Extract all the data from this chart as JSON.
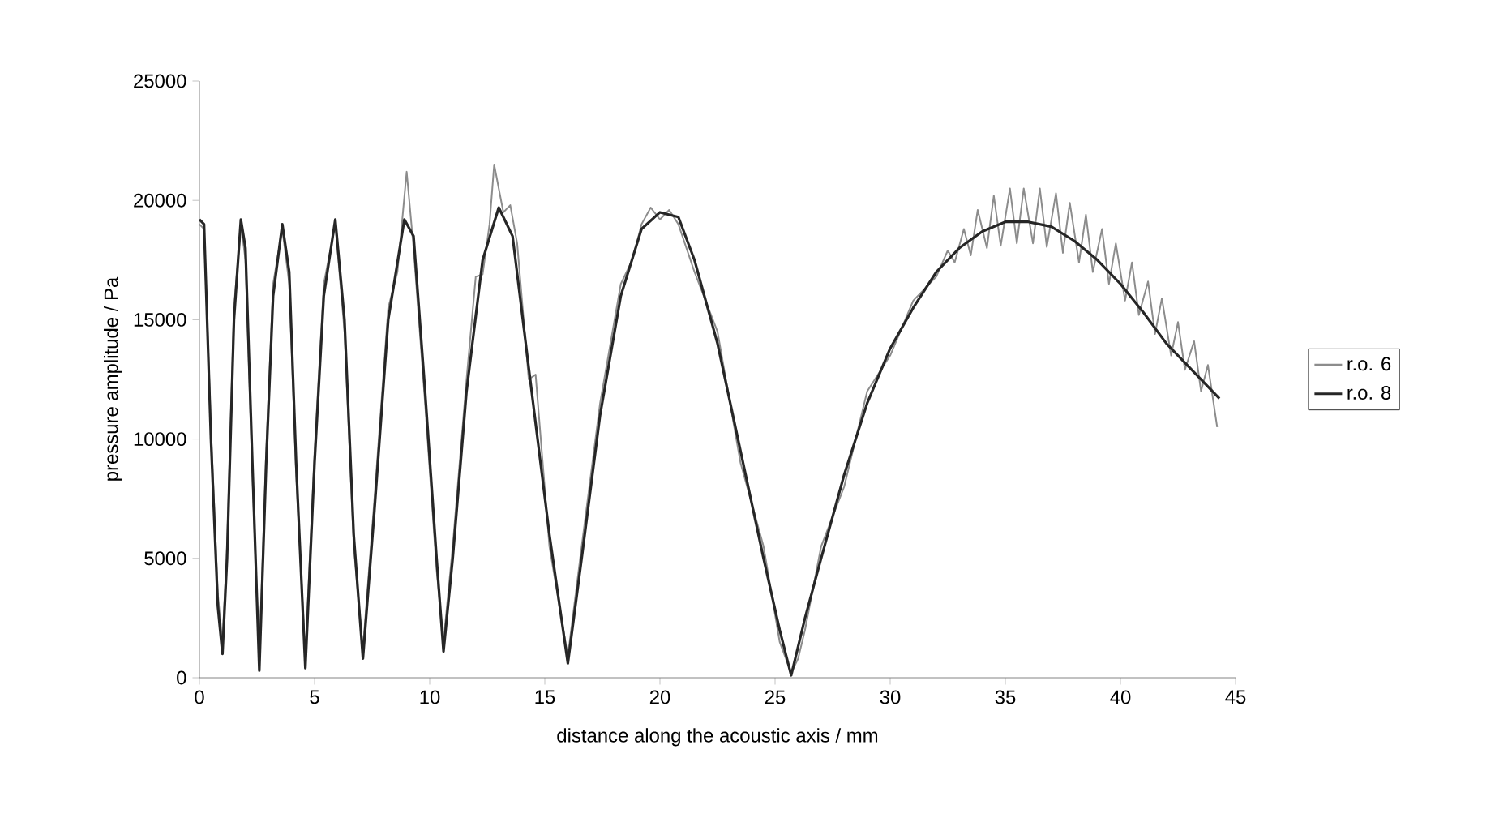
{
  "chart_data": {
    "type": "line",
    "xlabel": "distance along the acoustic axis / mm",
    "ylabel": "pressure amplitude / Pa",
    "xlim": [
      0,
      45
    ],
    "ylim": [
      0,
      25000
    ],
    "xticks": [
      0,
      5,
      10,
      15,
      20,
      25,
      30,
      35,
      40,
      45
    ],
    "yticks": [
      0,
      5000,
      10000,
      15000,
      20000,
      25000
    ],
    "grid": false,
    "legend": "right",
    "marker": "none",
    "line_style": "solid",
    "series": [
      {
        "name": "r.o. 6",
        "color": "#8c8c8c",
        "x": [
          0,
          0.2,
          0.5,
          0.8,
          1.0,
          1.2,
          1.5,
          1.8,
          2.0,
          2.3,
          2.6,
          2.9,
          3.2,
          3.6,
          3.9,
          4.2,
          4.6,
          5.0,
          5.4,
          5.9,
          6.3,
          6.7,
          7.1,
          7.6,
          8.2,
          8.6,
          9.0,
          9.3,
          9.8,
          10.3,
          10.6,
          11.0,
          11.6,
          12.0,
          12.3,
          12.6,
          12.8,
          13.2,
          13.5,
          13.8,
          14.3,
          14.6,
          15.2,
          16.0,
          16.6,
          17.4,
          18.3,
          18.8,
          19.2,
          19.6,
          20.0,
          20.4,
          20.8,
          21.5,
          22.5,
          23.5,
          24.5,
          25.2,
          25.7,
          26.0,
          26.3,
          27.0,
          28.0,
          29.0,
          30.0,
          31.0,
          32.0,
          32.5,
          32.8,
          33.2,
          33.5,
          33.8,
          34.2,
          34.5,
          34.8,
          35.2,
          35.5,
          35.8,
          36.2,
          36.5,
          36.8,
          37.2,
          37.5,
          37.8,
          38.2,
          38.5,
          38.8,
          39.2,
          39.5,
          39.8,
          40.2,
          40.5,
          40.8,
          41.2,
          41.5,
          41.8,
          42.2,
          42.5,
          42.8,
          43.2,
          43.5,
          43.8,
          44.2
        ],
        "values": [
          19000,
          18800,
          10500,
          3500,
          1500,
          5500,
          15500,
          19000,
          17500,
          8500,
          800,
          9500,
          16500,
          18800,
          16500,
          8500,
          900,
          9500,
          16500,
          19000,
          14500,
          5500,
          1200,
          7500,
          15500,
          17000,
          21200,
          18000,
          11500,
          4500,
          1500,
          5500,
          12500,
          16800,
          16900,
          19000,
          21500,
          19500,
          19800,
          18200,
          12500,
          12700,
          5500,
          900,
          5500,
          11500,
          16500,
          17500,
          19000,
          19700,
          19200,
          19600,
          19000,
          17000,
          14500,
          9000,
          5500,
          1500,
          200,
          800,
          2000,
          5500,
          8000,
          12000,
          13500,
          15800,
          16800,
          17900,
          17400,
          18800,
          17700,
          19600,
          18000,
          20200,
          18100,
          20500,
          18200,
          20500,
          18200,
          20500,
          18050,
          20300,
          17800,
          19900,
          17400,
          19400,
          17000,
          18800,
          16500,
          18200,
          15800,
          17400,
          15200,
          16600,
          14400,
          15900,
          13500,
          14900,
          12900,
          14100,
          12000,
          13100,
          10500
        ]
      },
      {
        "name": "r.o. 8",
        "color": "#262626",
        "x": [
          0,
          0.2,
          0.5,
          0.8,
          1.0,
          1.2,
          1.5,
          1.8,
          2.0,
          2.3,
          2.6,
          2.9,
          3.2,
          3.6,
          3.9,
          4.2,
          4.6,
          5.0,
          5.4,
          5.9,
          6.3,
          6.7,
          7.1,
          7.6,
          8.2,
          8.9,
          9.3,
          9.8,
          10.3,
          10.6,
          11.0,
          11.6,
          12.3,
          13.0,
          13.6,
          14.3,
          15.2,
          16.0,
          16.6,
          17.4,
          18.3,
          19.2,
          20.0,
          20.8,
          21.5,
          22.5,
          23.5,
          24.5,
          25.2,
          25.7,
          26.3,
          27.0,
          28.0,
          29.0,
          30.0,
          31.0,
          32.0,
          33.0,
          34.0,
          35.0,
          36.0,
          37.0,
          38.0,
          39.0,
          40.0,
          41.0,
          42.0,
          43.0,
          44.3
        ],
        "values": [
          19200,
          19000,
          10000,
          3000,
          1000,
          5000,
          15000,
          19200,
          18000,
          9000,
          300,
          9000,
          16000,
          19000,
          17000,
          9000,
          400,
          9000,
          16000,
          19200,
          15000,
          6000,
          800,
          7000,
          15000,
          19200,
          18500,
          12000,
          5000,
          1100,
          5000,
          12000,
          17500,
          19700,
          18500,
          13000,
          6000,
          600,
          5000,
          11000,
          16000,
          18800,
          19500,
          19300,
          17500,
          14000,
          9500,
          5000,
          2000,
          100,
          2500,
          5000,
          8500,
          11500,
          13800,
          15500,
          17000,
          18000,
          18700,
          19100,
          19100,
          18900,
          18300,
          17500,
          16500,
          15300,
          14000,
          13000,
          11700
        ]
      }
    ]
  }
}
